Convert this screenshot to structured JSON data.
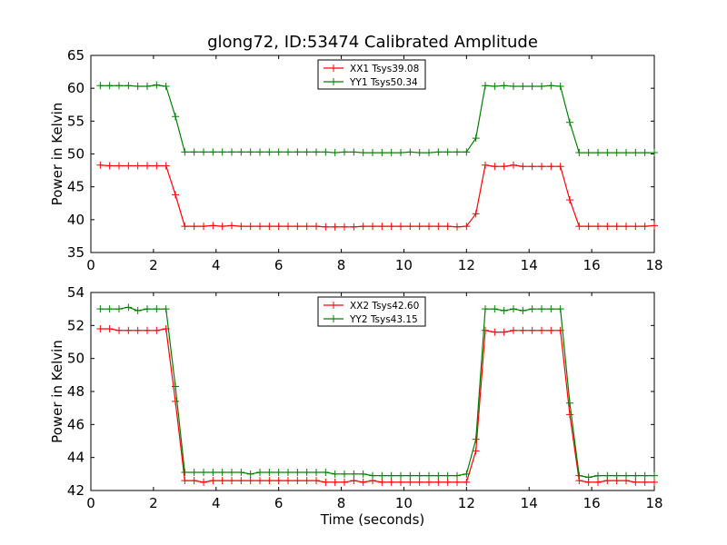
{
  "figure": {
    "title": "glong72, ID:53474 Calibrated Amplitude"
  },
  "chart_data": [
    {
      "type": "line",
      "title": "glong72, ID:53474 Calibrated Amplitude",
      "xlabel": "",
      "ylabel": "Power in Kelvin",
      "xlim": [
        0,
        18
      ],
      "ylim": [
        35,
        65
      ],
      "xticks": [
        0,
        2,
        4,
        6,
        8,
        10,
        12,
        14,
        16,
        18
      ],
      "yticks": [
        35,
        40,
        45,
        50,
        55,
        60,
        65
      ],
      "grid": false,
      "legend_position": "top-center",
      "x": [
        0.3,
        0.6,
        0.9,
        1.2,
        1.5,
        1.8,
        2.1,
        2.4,
        2.7,
        3.0,
        3.3,
        3.6,
        3.9,
        4.2,
        4.5,
        4.8,
        5.1,
        5.4,
        5.7,
        6.0,
        6.3,
        6.6,
        6.9,
        7.2,
        7.5,
        7.8,
        8.1,
        8.4,
        8.7,
        9.0,
        9.3,
        9.6,
        9.9,
        10.2,
        10.5,
        10.8,
        11.1,
        11.4,
        11.7,
        12.0,
        12.3,
        12.6,
        12.9,
        13.2,
        13.5,
        13.8,
        14.1,
        14.4,
        14.7,
        15.0,
        15.3,
        15.6,
        15.9,
        16.2,
        16.5,
        16.8,
        17.1,
        17.4,
        17.7,
        18.0
      ],
      "series": [
        {
          "name": "XX1 Tsys39.08",
          "color": "#ff0000",
          "values": [
            48.3,
            48.2,
            48.2,
            48.2,
            48.2,
            48.2,
            48.2,
            48.2,
            43.8,
            39.0,
            39.0,
            39.0,
            39.1,
            39.0,
            39.1,
            39.0,
            39.0,
            39.0,
            39.0,
            39.0,
            39.0,
            39.0,
            39.0,
            39.0,
            38.9,
            38.9,
            38.9,
            38.9,
            39.0,
            39.0,
            39.0,
            39.0,
            39.0,
            39.0,
            39.0,
            39.0,
            39.0,
            39.0,
            38.9,
            39.0,
            40.9,
            48.3,
            48.1,
            48.1,
            48.3,
            48.1,
            48.1,
            48.1,
            48.1,
            48.1,
            43.0,
            39.0,
            39.0,
            39.0,
            39.0,
            39.0,
            39.0,
            39.0,
            39.0,
            39.1
          ]
        },
        {
          "name": "YY1 Tsys50.34",
          "color": "#008000",
          "values": [
            60.4,
            60.4,
            60.4,
            60.4,
            60.3,
            60.3,
            60.5,
            60.3,
            55.7,
            50.3,
            50.3,
            50.3,
            50.3,
            50.3,
            50.3,
            50.3,
            50.3,
            50.3,
            50.3,
            50.3,
            50.3,
            50.3,
            50.3,
            50.3,
            50.3,
            50.2,
            50.3,
            50.3,
            50.2,
            50.2,
            50.2,
            50.2,
            50.2,
            50.3,
            50.2,
            50.2,
            50.3,
            50.3,
            50.3,
            50.3,
            52.4,
            60.4,
            60.3,
            60.4,
            60.3,
            60.3,
            60.3,
            60.3,
            60.4,
            60.3,
            54.8,
            50.2,
            50.2,
            50.2,
            50.2,
            50.2,
            50.2,
            50.2,
            50.2,
            50.2
          ]
        }
      ]
    },
    {
      "type": "line",
      "title": "",
      "xlabel": "Time (seconds)",
      "ylabel": "Power in Kelvin",
      "xlim": [
        0,
        18
      ],
      "ylim": [
        42,
        54
      ],
      "xticks": [
        0,
        2,
        4,
        6,
        8,
        10,
        12,
        14,
        16,
        18
      ],
      "yticks": [
        42,
        44,
        46,
        48,
        50,
        52,
        54
      ],
      "grid": false,
      "legend_position": "top-center",
      "x": [
        0.3,
        0.6,
        0.9,
        1.2,
        1.5,
        1.8,
        2.1,
        2.4,
        2.7,
        3.0,
        3.3,
        3.6,
        3.9,
        4.2,
        4.5,
        4.8,
        5.1,
        5.4,
        5.7,
        6.0,
        6.3,
        6.6,
        6.9,
        7.2,
        7.5,
        7.8,
        8.1,
        8.4,
        8.7,
        9.0,
        9.3,
        9.6,
        9.9,
        10.2,
        10.5,
        10.8,
        11.1,
        11.4,
        11.7,
        12.0,
        12.3,
        12.6,
        12.9,
        13.2,
        13.5,
        13.8,
        14.1,
        14.4,
        14.7,
        15.0,
        15.3,
        15.6,
        15.9,
        16.2,
        16.5,
        16.8,
        17.1,
        17.4,
        17.7,
        18.0
      ],
      "series": [
        {
          "name": "XX2 Tsys42.60",
          "color": "#ff0000",
          "values": [
            51.8,
            51.8,
            51.7,
            51.7,
            51.7,
            51.7,
            51.7,
            51.8,
            47.4,
            42.6,
            42.6,
            42.5,
            42.6,
            42.6,
            42.6,
            42.6,
            42.6,
            42.6,
            42.6,
            42.6,
            42.6,
            42.6,
            42.6,
            42.6,
            42.5,
            42.5,
            42.5,
            42.6,
            42.5,
            42.6,
            42.5,
            42.5,
            42.5,
            42.5,
            42.5,
            42.5,
            42.5,
            42.5,
            42.5,
            42.5,
            44.4,
            51.7,
            51.6,
            51.6,
            51.7,
            51.7,
            51.7,
            51.7,
            51.7,
            51.7,
            46.6,
            42.6,
            42.5,
            42.5,
            42.6,
            42.6,
            42.6,
            42.5,
            42.5,
            42.5
          ]
        },
        {
          "name": "YY2 Tsys43.15",
          "color": "#008000",
          "values": [
            53.0,
            53.0,
            53.0,
            53.1,
            52.9,
            53.0,
            53.0,
            53.0,
            48.3,
            43.1,
            43.1,
            43.1,
            43.1,
            43.1,
            43.1,
            43.1,
            43.0,
            43.1,
            43.1,
            43.1,
            43.1,
            43.1,
            43.1,
            43.1,
            43.1,
            43.0,
            43.0,
            43.0,
            43.0,
            42.9,
            42.9,
            42.9,
            42.9,
            42.9,
            42.9,
            42.9,
            42.9,
            42.9,
            42.9,
            43.0,
            45.1,
            53.0,
            53.0,
            52.9,
            53.0,
            52.9,
            53.0,
            53.0,
            53.0,
            53.0,
            47.3,
            42.9,
            42.8,
            42.9,
            42.9,
            42.9,
            42.9,
            42.9,
            42.9,
            42.9
          ]
        }
      ]
    }
  ]
}
